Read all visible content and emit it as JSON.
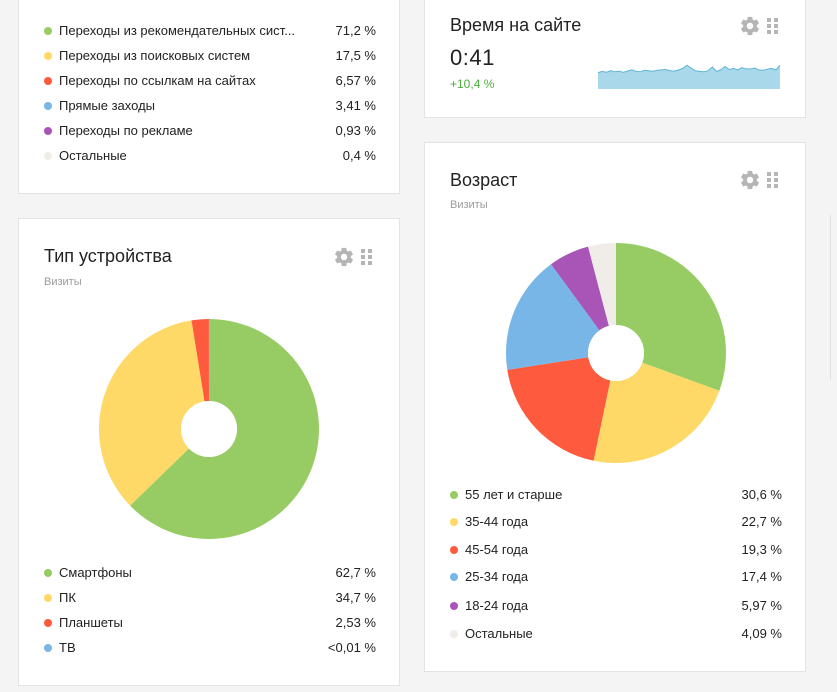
{
  "sources": {
    "items": [
      {
        "label": "Переходы из рекомендательных сист...",
        "value": "71,2 %",
        "color": "#97cc64"
      },
      {
        "label": "Переходы из поисковых систем",
        "value": "17,5 %",
        "color": "#fed967"
      },
      {
        "label": "Переходы по ссылкам на сайтах",
        "value": "6,57 %",
        "color": "#fd5a3e"
      },
      {
        "label": "Прямые заходы",
        "value": "3,41 %",
        "color": "#77b6e7"
      },
      {
        "label": "Переходы по рекламе",
        "value": "0,93 %",
        "color": "#a955b8"
      },
      {
        "label": "Остальные",
        "value": "0,4 %",
        "color": "#f0ede9"
      }
    ]
  },
  "time_on_site": {
    "title": "Время на сайте",
    "value": "0:41",
    "delta": "+10,4 %",
    "sparkline_color": "#a8d8ea",
    "sparkline_stroke": "#5fb5d6",
    "sparkline": [
      0.55,
      0.62,
      0.58,
      0.66,
      0.6,
      0.63,
      0.57,
      0.64,
      0.7,
      0.62,
      0.6,
      0.68,
      0.66,
      0.63,
      0.68,
      0.7,
      0.72,
      0.66,
      0.64,
      0.69,
      0.78,
      0.95,
      0.8,
      0.65,
      0.62,
      0.6,
      0.66,
      0.85,
      0.62,
      0.7,
      0.88,
      0.72,
      0.78,
      0.7,
      0.82,
      0.76,
      0.75,
      0.8,
      0.7,
      0.68,
      0.74,
      0.78,
      0.7,
      0.95
    ]
  },
  "device_type": {
    "title": "Тип устройства",
    "subtitle": "Визиты",
    "chart_data": {
      "type": "pie",
      "categories": [
        "Смартфоны",
        "ПК",
        "Планшеты",
        "ТВ"
      ],
      "values": [
        62.7,
        34.7,
        2.53,
        0.01
      ],
      "colors": [
        "#97cc64",
        "#fed967",
        "#fd5a3e",
        "#77b6e7"
      ]
    },
    "legend": [
      {
        "label": "Смартфоны",
        "value": "62,7 %",
        "color": "#97cc64"
      },
      {
        "label": "ПК",
        "value": "34,7 %",
        "color": "#fed967"
      },
      {
        "label": "Планшеты",
        "value": "2,53 %",
        "color": "#fd5a3e"
      },
      {
        "label": "ТВ",
        "value": "<0,01 %",
        "color": "#77b6e7"
      }
    ]
  },
  "age": {
    "title": "Возраст",
    "subtitle": "Визиты",
    "chart_data": {
      "type": "pie",
      "categories": [
        "55 лет и старше",
        "35-44 года",
        "45-54 года",
        "25-34 года",
        "18-24 года",
        "Остальные"
      ],
      "values": [
        30.6,
        22.7,
        19.3,
        17.4,
        5.97,
        4.09
      ],
      "colors": [
        "#97cc64",
        "#fed967",
        "#fd5a3e",
        "#77b6e7",
        "#a955b8",
        "#f0ede9"
      ]
    },
    "legend": [
      {
        "label": "55 лет и старше",
        "value": "30,6 %",
        "color": "#97cc64"
      },
      {
        "label": "35-44 года",
        "value": "22,7 %",
        "color": "#fed967"
      },
      {
        "label": "45-54 года",
        "value": "19,3 %",
        "color": "#fd5a3e"
      },
      {
        "label": "25-34 года",
        "value": "17,4 %",
        "color": "#77b6e7"
      },
      {
        "label": "18-24 года",
        "value": "5,97 %",
        "color": "#a955b8"
      },
      {
        "label": "Остальные",
        "value": "4,09 %",
        "color": "#f0ede9"
      }
    ]
  },
  "icons": {
    "settings": "gear-icon",
    "drag": "grip-icon"
  }
}
